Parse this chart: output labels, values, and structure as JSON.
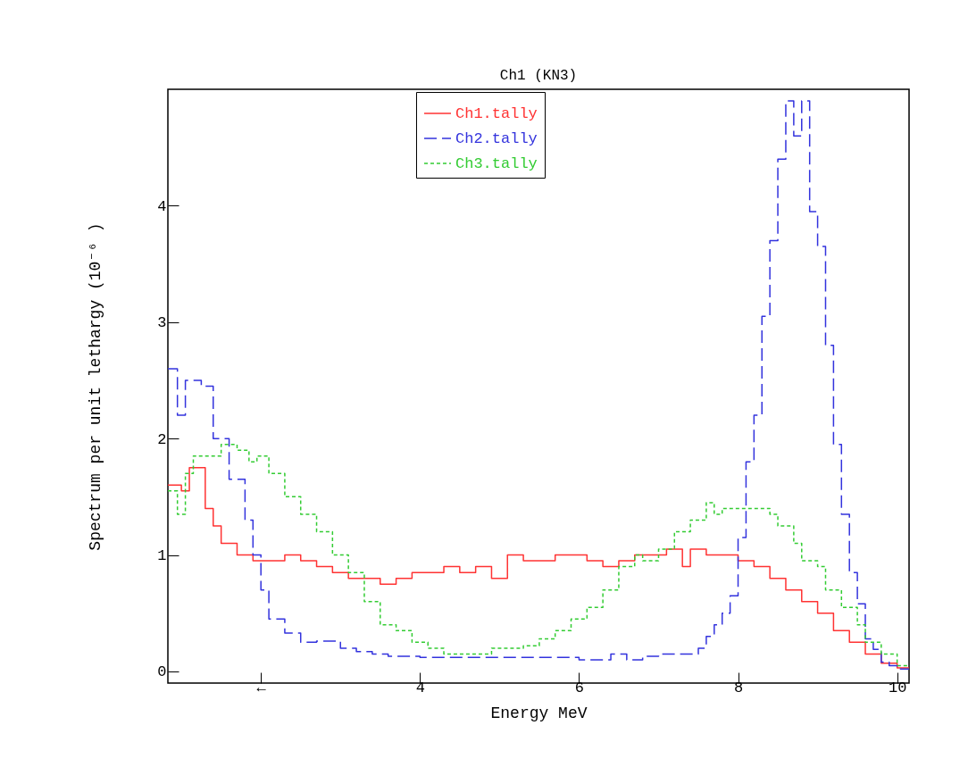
{
  "chart_data": {
    "type": "step",
    "title": "Ch1 (KN3)",
    "xlabel": "Energy MeV",
    "ylabel": "Spectrum per unit lethargy (10⁻⁶ )",
    "xlim": [
      0.83,
      10.15
    ],
    "ylim": [
      -0.1,
      5.0
    ],
    "xticks": [
      {
        "value": 2,
        "label": "←"
      },
      4,
      6,
      8,
      10
    ],
    "yticks": [
      0,
      1,
      2,
      3,
      4
    ],
    "grid": false,
    "legend": "top",
    "series": [
      {
        "name": "Ch1.tally",
        "color": "#ff3333",
        "line_style": "solid",
        "x": [
          0.83,
          1.0,
          1.1,
          1.3,
          1.4,
          1.5,
          1.7,
          1.9,
          2.1,
          2.3,
          2.5,
          2.7,
          2.9,
          3.1,
          3.3,
          3.5,
          3.7,
          3.9,
          4.1,
          4.3,
          4.5,
          4.7,
          4.9,
          5.1,
          5.3,
          5.5,
          5.7,
          5.9,
          6.1,
          6.3,
          6.5,
          6.7,
          6.9,
          7.1,
          7.3,
          7.4,
          7.6,
          7.8,
          8.0,
          8.2,
          8.4,
          8.6,
          8.8,
          9.0,
          9.2,
          9.4,
          9.6,
          9.8,
          10.0,
          10.15
        ],
        "values": [
          1.6,
          1.55,
          1.75,
          1.4,
          1.25,
          1.1,
          1.0,
          0.95,
          0.95,
          1.0,
          0.95,
          0.9,
          0.85,
          0.8,
          0.8,
          0.75,
          0.8,
          0.85,
          0.85,
          0.9,
          0.85,
          0.9,
          0.8,
          1.0,
          0.95,
          0.95,
          1.0,
          1.0,
          0.95,
          0.9,
          0.95,
          1.0,
          1.0,
          1.05,
          0.9,
          1.05,
          1.0,
          1.0,
          0.95,
          0.9,
          0.8,
          0.7,
          0.6,
          0.5,
          0.35,
          0.25,
          0.15,
          0.07,
          0.03,
          0.03
        ]
      },
      {
        "name": "Ch2.tally",
        "color": "#3333dd",
        "line_style": "dashed",
        "x": [
          0.83,
          0.95,
          1.05,
          1.25,
          1.4,
          1.6,
          1.8,
          1.9,
          2.0,
          2.1,
          2.3,
          2.5,
          2.7,
          3.0,
          3.2,
          3.4,
          3.6,
          4.0,
          4.5,
          5.0,
          5.5,
          6.0,
          6.4,
          6.6,
          6.8,
          7.0,
          7.5,
          7.6,
          7.7,
          7.8,
          7.9,
          8.0,
          8.1,
          8.2,
          8.3,
          8.4,
          8.5,
          8.6,
          8.7,
          8.8,
          8.9,
          9.0,
          9.1,
          9.2,
          9.3,
          9.4,
          9.5,
          9.6,
          9.7,
          9.8,
          9.9,
          10.0,
          10.15
        ],
        "values": [
          2.6,
          2.2,
          2.5,
          2.45,
          2.0,
          1.65,
          1.3,
          1.0,
          0.7,
          0.45,
          0.33,
          0.25,
          0.26,
          0.2,
          0.17,
          0.15,
          0.13,
          0.12,
          0.12,
          0.12,
          0.12,
          0.1,
          0.15,
          0.1,
          0.13,
          0.15,
          0.2,
          0.3,
          0.4,
          0.5,
          0.65,
          1.15,
          1.8,
          2.2,
          3.05,
          3.7,
          4.4,
          4.9,
          4.6,
          4.9,
          3.95,
          3.65,
          2.8,
          1.95,
          1.35,
          0.85,
          0.58,
          0.28,
          0.19,
          0.08,
          0.05,
          0.02,
          0.02
        ]
      },
      {
        "name": "Ch3.tally",
        "color": "#33cc33",
        "line_style": "dotted",
        "x": [
          0.83,
          0.95,
          1.05,
          1.15,
          1.3,
          1.5,
          1.7,
          1.85,
          1.95,
          2.1,
          2.3,
          2.5,
          2.7,
          2.9,
          3.1,
          3.3,
          3.5,
          3.7,
          3.9,
          4.1,
          4.3,
          4.9,
          5.3,
          5.5,
          5.7,
          5.9,
          6.1,
          6.3,
          6.5,
          6.7,
          6.8,
          7.0,
          7.2,
          7.4,
          7.6,
          7.7,
          7.8,
          8.4,
          8.5,
          8.7,
          8.8,
          9.0,
          9.1,
          9.3,
          9.5,
          9.6,
          9.8,
          10.0,
          10.15
        ],
        "values": [
          1.55,
          1.35,
          1.7,
          1.85,
          1.85,
          1.95,
          1.9,
          1.8,
          1.85,
          1.7,
          1.5,
          1.35,
          1.2,
          1.0,
          0.85,
          0.6,
          0.4,
          0.35,
          0.25,
          0.2,
          0.15,
          0.2,
          0.22,
          0.28,
          0.35,
          0.45,
          0.55,
          0.7,
          0.9,
          1.0,
          0.95,
          1.05,
          1.2,
          1.3,
          1.45,
          1.35,
          1.4,
          1.35,
          1.25,
          1.1,
          0.95,
          0.9,
          0.7,
          0.55,
          0.4,
          0.25,
          0.15,
          0.05,
          0.05
        ]
      }
    ]
  }
}
